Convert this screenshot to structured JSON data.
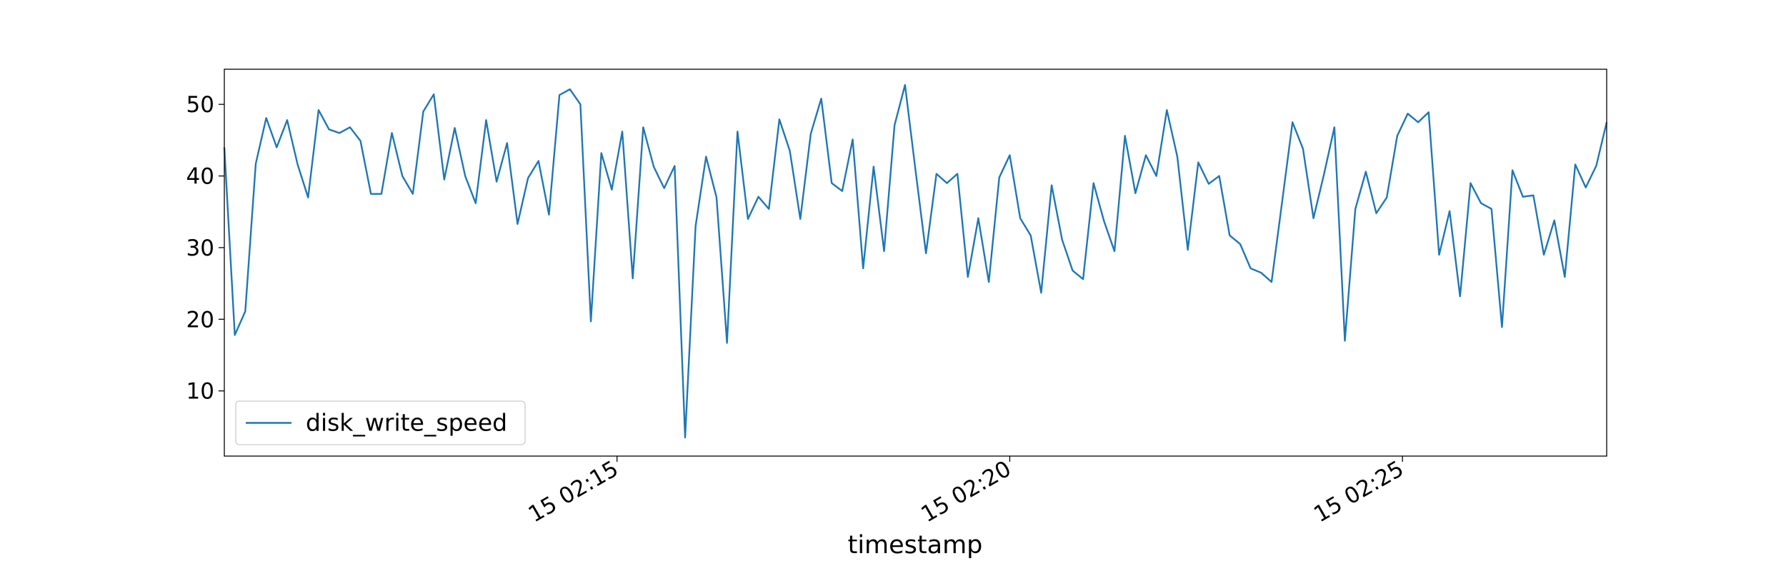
{
  "chart_data": {
    "type": "line",
    "xlabel": "timestamp",
    "x": [
      "15 02:10:00",
      "15 02:10:08",
      "15 02:10:16",
      "15 02:10:24",
      "15 02:10:32",
      "15 02:10:40",
      "15 02:10:48",
      "15 02:10:56",
      "15 02:11:04",
      "15 02:11:12",
      "15 02:11:20",
      "15 02:11:28",
      "15 02:11:36",
      "15 02:11:44",
      "15 02:11:52",
      "15 02:12:00",
      "15 02:12:08",
      "15 02:12:16",
      "15 02:12:24",
      "15 02:12:32",
      "15 02:12:40",
      "15 02:12:48",
      "15 02:12:56",
      "15 02:13:04",
      "15 02:13:12",
      "15 02:13:20",
      "15 02:13:28",
      "15 02:13:36",
      "15 02:13:44",
      "15 02:13:52",
      "15 02:14:00",
      "15 02:14:08",
      "15 02:14:16",
      "15 02:14:24",
      "15 02:14:32",
      "15 02:14:40",
      "15 02:14:48",
      "15 02:14:56",
      "15 02:15:04",
      "15 02:15:12",
      "15 02:15:20",
      "15 02:15:28",
      "15 02:15:36",
      "15 02:15:44",
      "15 02:15:52",
      "15 02:16:00",
      "15 02:16:08",
      "15 02:16:16",
      "15 02:16:24",
      "15 02:16:32",
      "15 02:16:40",
      "15 02:16:48",
      "15 02:16:56",
      "15 02:17:04",
      "15 02:17:12",
      "15 02:17:20",
      "15 02:17:28",
      "15 02:17:36",
      "15 02:17:44",
      "15 02:17:52",
      "15 02:18:00",
      "15 02:18:08",
      "15 02:18:16",
      "15 02:18:24",
      "15 02:18:32",
      "15 02:18:40",
      "15 02:18:48",
      "15 02:18:56",
      "15 02:19:04",
      "15 02:19:12",
      "15 02:19:20",
      "15 02:19:28",
      "15 02:19:36",
      "15 02:19:44",
      "15 02:19:52",
      "15 02:20:00",
      "15 02:20:08",
      "15 02:20:16",
      "15 02:20:24",
      "15 02:20:32",
      "15 02:20:40",
      "15 02:20:48",
      "15 02:20:56",
      "15 02:21:04",
      "15 02:21:12",
      "15 02:21:20",
      "15 02:21:28",
      "15 02:21:36",
      "15 02:21:44",
      "15 02:21:52",
      "15 02:22:00",
      "15 02:22:08",
      "15 02:22:16",
      "15 02:22:24",
      "15 02:22:32",
      "15 02:22:40",
      "15 02:22:48",
      "15 02:22:56",
      "15 02:23:04",
      "15 02:23:12",
      "15 02:23:20",
      "15 02:23:28",
      "15 02:23:36",
      "15 02:23:44",
      "15 02:23:52",
      "15 02:24:00",
      "15 02:24:08",
      "15 02:24:16",
      "15 02:24:24",
      "15 02:24:32",
      "15 02:24:40",
      "15 02:24:48",
      "15 02:24:56",
      "15 02:25:04",
      "15 02:25:12",
      "15 02:25:20",
      "15 02:25:28",
      "15 02:25:36",
      "15 02:25:44",
      "15 02:25:52",
      "15 02:26:00",
      "15 02:26:08",
      "15 02:26:16",
      "15 02:26:24",
      "15 02:26:32",
      "15 02:26:40",
      "15 02:26:48",
      "15 02:26:56",
      "15 02:27:04",
      "15 02:27:12",
      "15 02:27:20",
      "15 02:27:28",
      "15 02:27:36"
    ],
    "series": [
      {
        "name": "disk_write_speed",
        "color": "#1f77b4",
        "values": [
          44,
          17.8,
          21.1,
          41.7,
          48.1,
          44,
          47.8,
          41.6,
          37,
          49.2,
          46.5,
          46,
          46.8,
          44.9,
          37.5,
          37.5,
          46,
          40,
          37.5,
          49,
          51.4,
          39.5,
          46.7,
          40,
          36.2,
          47.8,
          39.2,
          44.6,
          33.3,
          39.7,
          42.1,
          34.6,
          51.3,
          52.1,
          50,
          19.7,
          43.2,
          38.1,
          46.2,
          25.7,
          46.8,
          41.3,
          38.3,
          41.4,
          3.5,
          33,
          42.7,
          37,
          16.7,
          46.2,
          34,
          37.1,
          35.4,
          47.9,
          43.5,
          34,
          45.9,
          50.8,
          39,
          37.9,
          45.1,
          27.1,
          41.3,
          29.5,
          47.1,
          52.7,
          40.8,
          29.2,
          40.3,
          39,
          40.3,
          25.9,
          34.1,
          25.2,
          39.8,
          42.9,
          34.1,
          31.7,
          23.7,
          38.7,
          31.1,
          26.8,
          25.6,
          39,
          33.7,
          29.5,
          45.6,
          37.6,
          42.9,
          40,
          49.2,
          42.7,
          29.7,
          41.9,
          38.9,
          40,
          31.7,
          30.5,
          27.1,
          26.5,
          25.2,
          36.3,
          47.5,
          43.8,
          34.1,
          40.2,
          46.8,
          17,
          35.4,
          40.6,
          34.8,
          37,
          45.6,
          48.7,
          47.5,
          48.9,
          29,
          35.1,
          23.2,
          39,
          36.2,
          35.4,
          18.9,
          40.8,
          37.1,
          37.3,
          29,
          33.8,
          25.9,
          41.6,
          38.4,
          41.4,
          47.5
        ]
      }
    ],
    "xlim": [
      "15 02:10:00",
      "15 02:27:36"
    ],
    "xticks": [
      "15 02:15",
      "15 02:20",
      "15 02:25"
    ],
    "ylim": [
      0.9,
      54.9
    ],
    "yticks": [
      10,
      20,
      30,
      40,
      50
    ],
    "legend": "lower left"
  }
}
